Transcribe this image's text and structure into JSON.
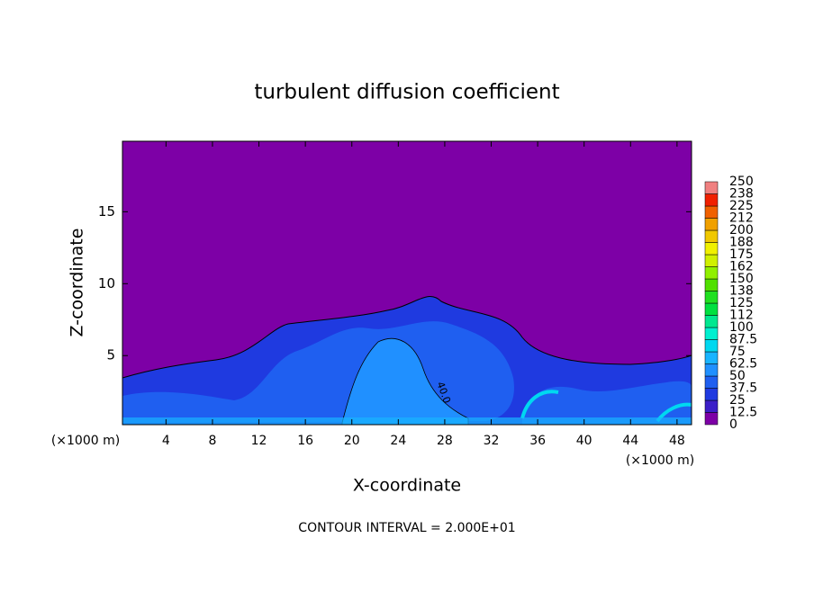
{
  "chart_data": {
    "type": "contour",
    "title": "turbulent diffusion coefficient",
    "xlabel": "X-coordinate",
    "ylabel": "Z-coordinate",
    "x_unit_left": "(×1000 m)",
    "x_unit_right": "(×1000 m)",
    "footer": "CONTOUR INTERVAL = 2.000E+01",
    "contour_label": "40.0",
    "xlim": [
      0.25,
      49.25
    ],
    "xticks": [
      4,
      8,
      12,
      16,
      20,
      24,
      28,
      32,
      36,
      40,
      44,
      48
    ],
    "ylim": [
      0.2,
      19.9
    ],
    "yticks": [
      5,
      10,
      15
    ],
    "colorbar": {
      "ticks": [
        0,
        12.5,
        25,
        37.5,
        50,
        62.5,
        75,
        87.5,
        100,
        112,
        125,
        138,
        150,
        162,
        175,
        188,
        200,
        212,
        225,
        238,
        250
      ],
      "colors": [
        "#7d00a6",
        "#3b1fc8",
        "#1f3ae0",
        "#1f5ff0",
        "#2090ff",
        "#18b4ff",
        "#00d8f0",
        "#00f0d0",
        "#00e890",
        "#00e040",
        "#20e020",
        "#50e000",
        "#90f000",
        "#d0f000",
        "#f0f000",
        "#f0c800",
        "#f0a000",
        "#f06000",
        "#f02000",
        "#f08080"
      ]
    }
  }
}
